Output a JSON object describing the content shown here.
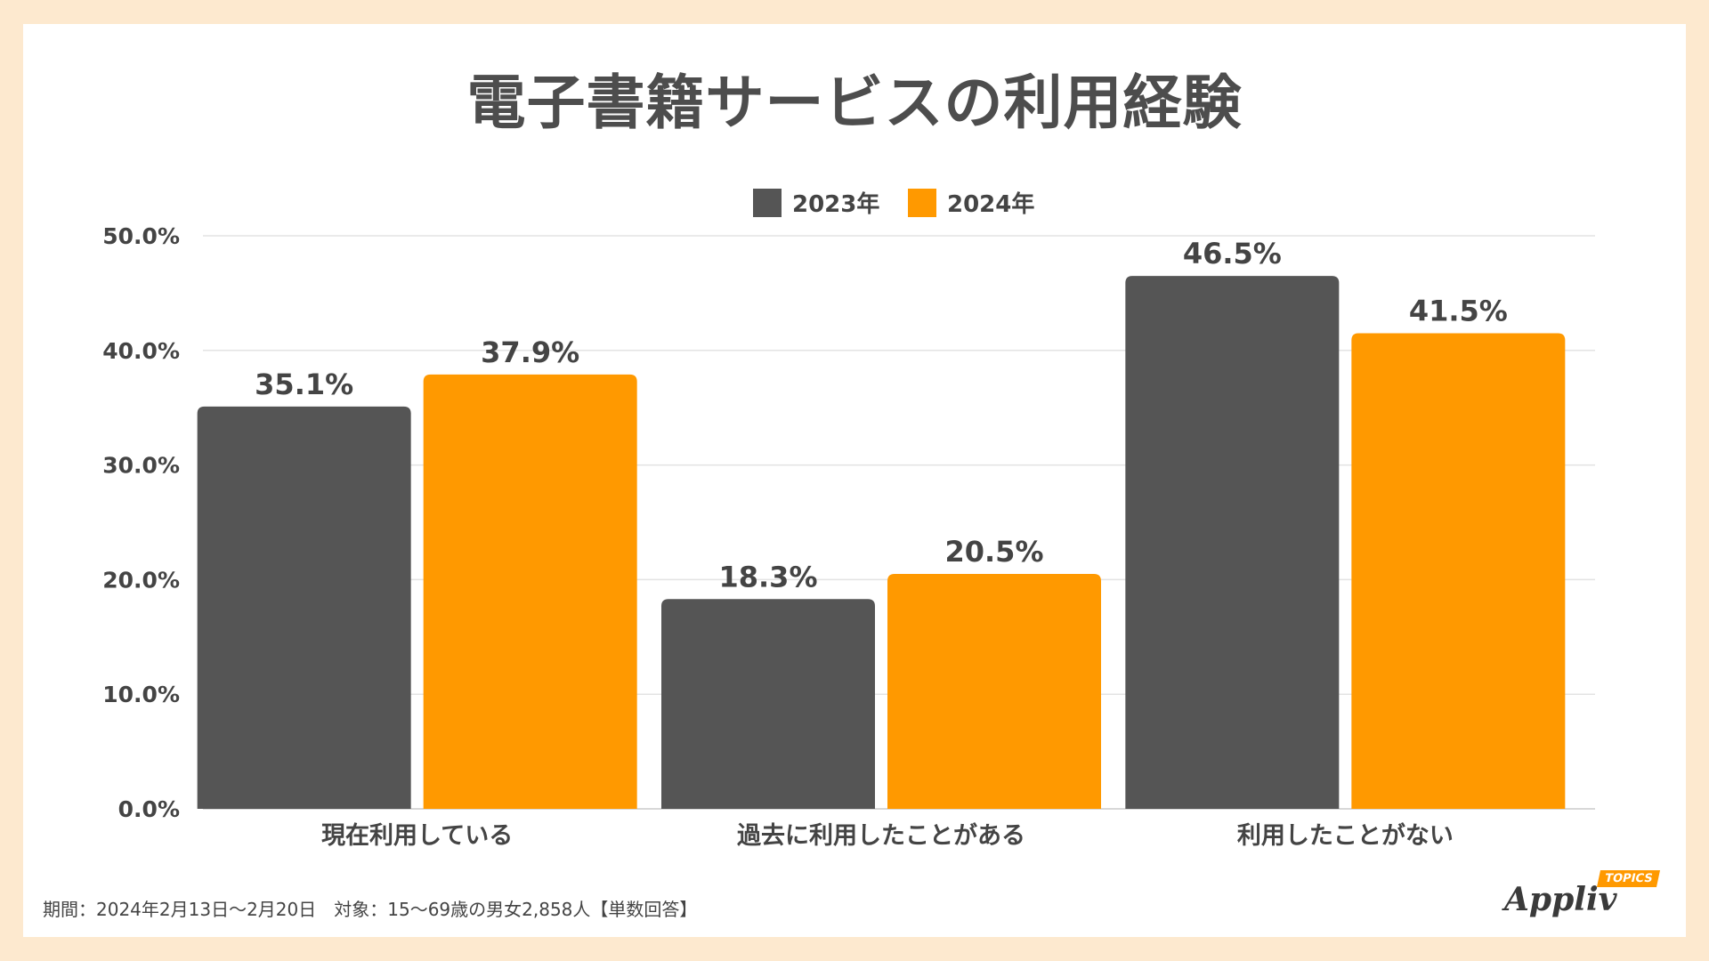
{
  "header": {
    "title": "電子書籍サービスの利用経験"
  },
  "footer": {
    "note": "期間：2024年2月13日〜2月20日　対象：15〜69歳の男女2,858人【単数回答】",
    "logo_text": "Appliv",
    "logo_tag": "TOPICS"
  },
  "colors": {
    "series_2023": "#555555",
    "series_2024": "#ff9900",
    "grid": "#e3e3e3",
    "text": "#444444"
  },
  "chart_data": {
    "type": "bar",
    "title": "電子書籍サービスの利用経験",
    "categories": [
      "現在利用している",
      "過去に利用したことがある",
      "利用したことがない"
    ],
    "series": [
      {
        "name": "2023年",
        "values": [
          35.1,
          18.3,
          46.5
        ],
        "labels": [
          "35.1%",
          "18.3%",
          "46.5%"
        ]
      },
      {
        "name": "2024年",
        "values": [
          37.9,
          20.5,
          41.5
        ],
        "labels": [
          "37.9%",
          "20.5%",
          "41.5%"
        ]
      }
    ],
    "ylim": [
      0,
      50
    ],
    "yticks": [
      0,
      10,
      20,
      30,
      40,
      50
    ],
    "ytick_labels": [
      "0.0%",
      "10.0%",
      "20.0%",
      "30.0%",
      "40.0%",
      "50.0%"
    ],
    "xlabel": "",
    "ylabel": "",
    "grid": true,
    "legend": "top-center"
  }
}
